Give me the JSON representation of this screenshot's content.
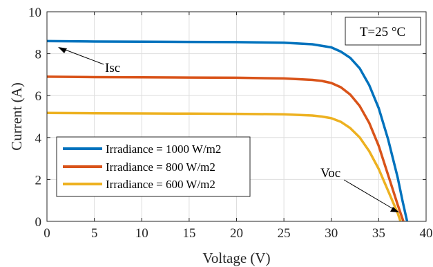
{
  "chart_data": {
    "type": "line",
    "xlabel": "Voltage (V)",
    "ylabel": "Current (A)",
    "xlim": [
      0,
      40
    ],
    "ylim": [
      0,
      10
    ],
    "xticks": [
      0,
      5,
      10,
      15,
      20,
      25,
      30,
      35,
      40
    ],
    "yticks": [
      0,
      2,
      4,
      6,
      8,
      10
    ],
    "grid": true,
    "legend_position": "bottom-left",
    "annotations": [
      "T=25 °C",
      "Isc",
      "Voc"
    ],
    "series": [
      {
        "name": "Irradiance = 1000 W/m2",
        "color": "#0072BD",
        "x": [
          0,
          5,
          10,
          15,
          20,
          25,
          28,
          30,
          31,
          32,
          33,
          34,
          35,
          36,
          37,
          37.5,
          38
        ],
        "y": [
          8.6,
          8.58,
          8.57,
          8.56,
          8.55,
          8.52,
          8.45,
          8.3,
          8.1,
          7.8,
          7.3,
          6.5,
          5.4,
          3.9,
          2.1,
          1.0,
          0
        ]
      },
      {
        "name": "Irradiance = 800 W/m2",
        "color": "#D95319",
        "x": [
          0,
          5,
          10,
          15,
          20,
          25,
          28,
          29,
          30,
          31,
          32,
          33,
          34,
          35,
          36,
          37,
          37.6
        ],
        "y": [
          6.9,
          6.88,
          6.87,
          6.86,
          6.85,
          6.82,
          6.75,
          6.7,
          6.6,
          6.4,
          6.05,
          5.5,
          4.7,
          3.6,
          2.2,
          0.8,
          0
        ]
      },
      {
        "name": "Irradiance = 600 W/m2",
        "color": "#EDB120",
        "x": [
          0,
          5,
          10,
          15,
          20,
          25,
          28,
          29,
          30,
          31,
          32,
          33,
          34,
          35,
          36,
          37,
          37.3
        ],
        "y": [
          5.17,
          5.16,
          5.15,
          5.14,
          5.13,
          5.11,
          5.05,
          5.0,
          4.92,
          4.75,
          4.45,
          4.0,
          3.35,
          2.5,
          1.45,
          0.4,
          0
        ]
      }
    ]
  }
}
